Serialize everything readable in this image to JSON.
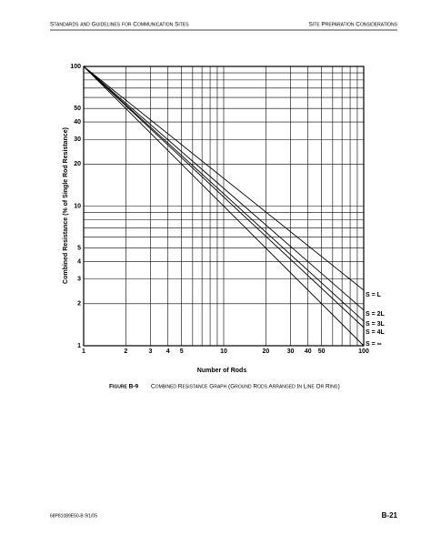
{
  "header": {
    "left": "Standards and Guidelines for Communication Sites",
    "right": "Site Preparation Considerations"
  },
  "chart_data": {
    "type": "line",
    "x_label": "Number of Rods",
    "y_label": "Combined Resistance (% of Single Rod Resistance)",
    "x_scale": "log",
    "y_scale": "log",
    "x": [
      1,
      100
    ],
    "series": [
      {
        "name": "S = L",
        "color": "#000000",
        "values": [
          100,
          2.5
        ]
      },
      {
        "name": "S = 2L",
        "color": "#000000",
        "values": [
          100,
          1.8
        ]
      },
      {
        "name": "S = 3L",
        "color": "#000000",
        "values": [
          100,
          1.5
        ]
      },
      {
        "name": "S = 4L",
        "color": "#000000",
        "values": [
          100,
          1.35
        ]
      },
      {
        "name": "S = ∞",
        "color": "#000000",
        "values": [
          100,
          1
        ]
      }
    ],
    "xlim": [
      1,
      100
    ],
    "ylim": [
      1,
      100
    ],
    "xticks": [
      1,
      2,
      3,
      4,
      5,
      10,
      20,
      30,
      40,
      50,
      100
    ],
    "yticks": [
      1,
      2,
      3,
      4,
      5,
      10,
      20,
      30,
      40,
      50,
      100
    ],
    "x_minor_grid": [
      6,
      7,
      8,
      9,
      60,
      70,
      80,
      90
    ],
    "y_minor_grid": [
      6,
      7,
      8,
      9,
      60,
      70,
      80,
      90
    ],
    "grid": true
  },
  "caption": {
    "label": "Figure B-9",
    "text": "Combined Resistance Graph (Ground Rods Arranged In Line Or Ring)"
  },
  "footer": {
    "left": "68P81089E50-B   9/1/05",
    "right": "B-21"
  }
}
